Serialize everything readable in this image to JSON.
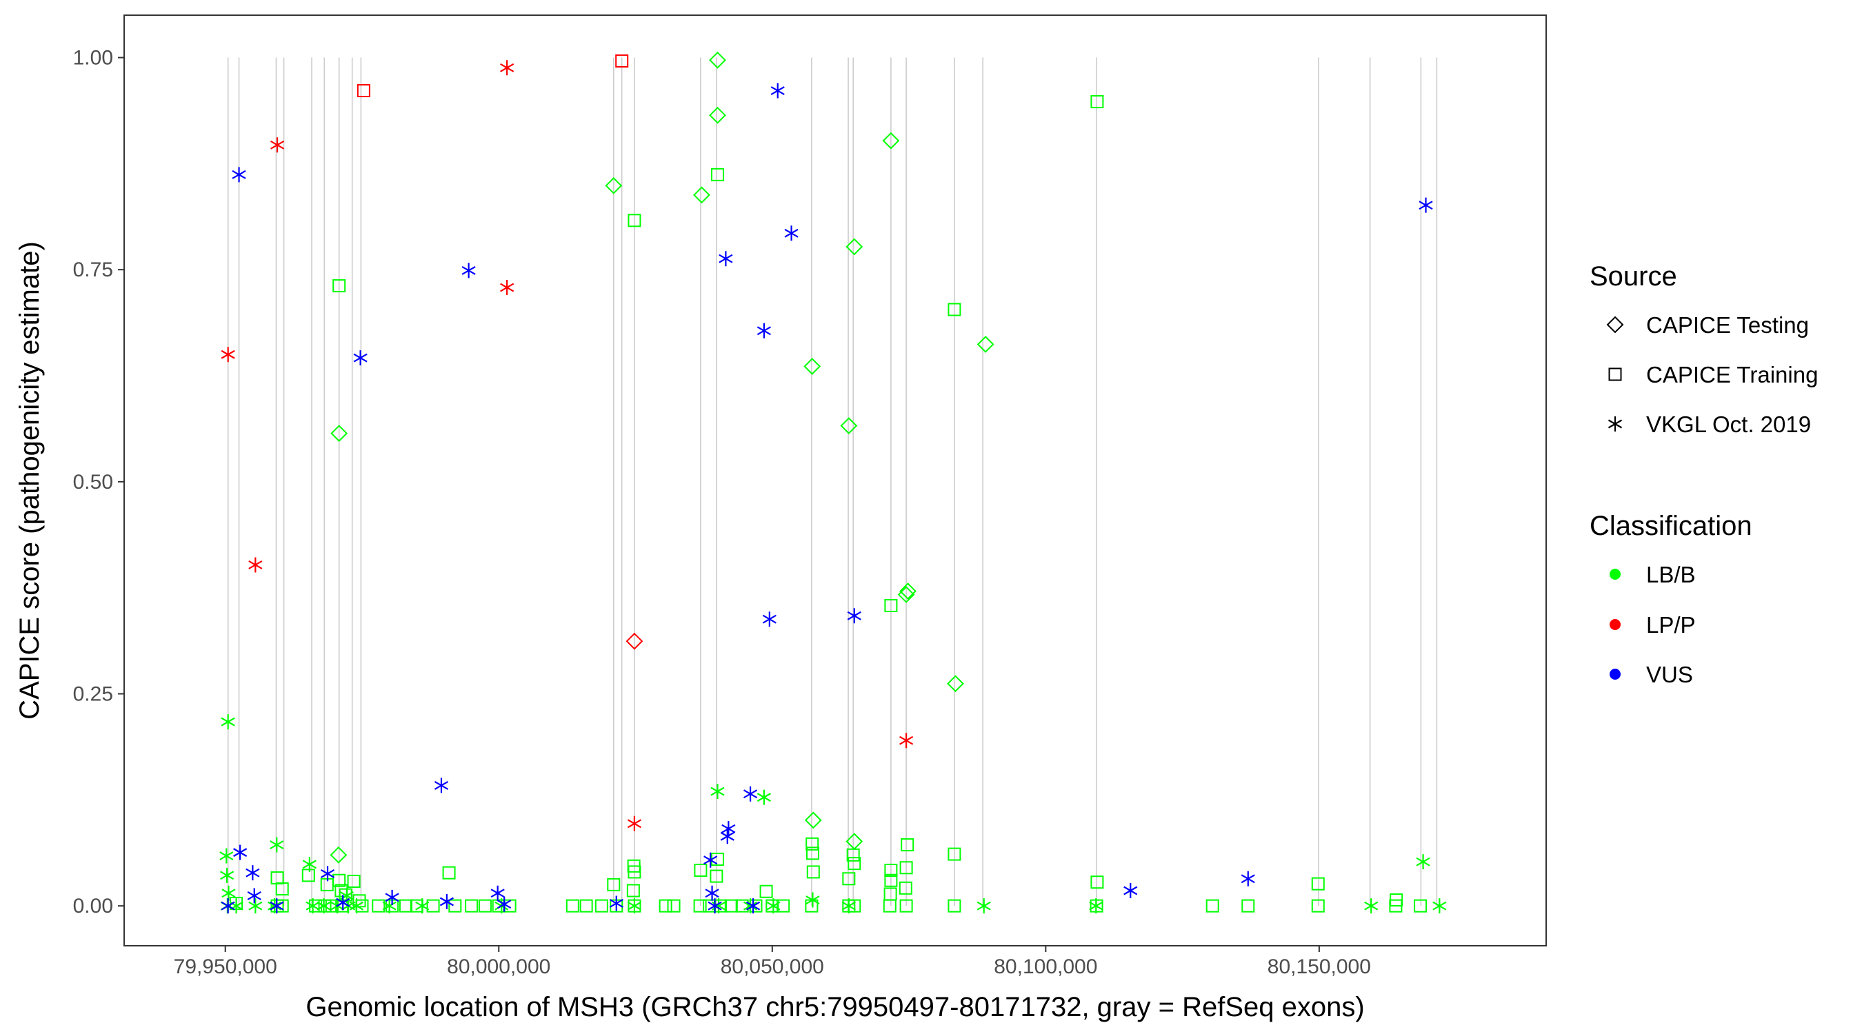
{
  "chart_data": {
    "type": "scatter",
    "xlabel": "Genomic location of MSH3 (GRCh37 chr5:79950497-80171732, gray = RefSeq exons)",
    "ylabel": "CAPICE score (pathogenicity estimate)",
    "xlim": [
      79931500,
      80191500
    ],
    "ylim": [
      -0.047,
      1.05
    ],
    "x_ticks": [
      79950000,
      80000000,
      80050000,
      80100000,
      80150000
    ],
    "x_tick_labels": [
      "79,950,000",
      "80,000,000",
      "80,050,000",
      "80,100,000",
      "80,150,000"
    ],
    "y_ticks": [
      0,
      0.25,
      0.5,
      0.75,
      1.0
    ],
    "y_tick_labels": [
      "0.00",
      "0.25",
      "0.50",
      "0.75",
      "1.00"
    ],
    "grid": false,
    "exon_color": "#cccccc",
    "exon_lines": [
      79950500,
      79952500,
      79959300,
      79960700,
      79965800,
      79968100,
      79970800,
      79973200,
      79974800,
      80021000,
      80022500,
      80024800,
      80036900,
      80039800,
      80057200,
      80063900,
      80064800,
      80071700,
      80074500,
      80083300,
      80088500,
      80109300,
      80149900,
      80159300,
      80168600,
      80171500
    ],
    "legend": {
      "placement": "right",
      "source_title": "Source",
      "source_entries": [
        {
          "label": "CAPICE Testing",
          "shape": "diamond"
        },
        {
          "label": "CAPICE Training",
          "shape": "square"
        },
        {
          "label": "VKGL Oct. 2019",
          "shape": "asterisk"
        }
      ],
      "class_title": "Classification",
      "class_entries": [
        {
          "label": "LB/B",
          "color": "#00ff00"
        },
        {
          "label": "LP/P",
          "color": "#ff0000"
        },
        {
          "label": "VUS",
          "color": "#0000ff"
        }
      ]
    },
    "series": [
      {
        "source": "CAPICE Testing",
        "classification": "LB/B",
        "x": [
          80040000,
          80040000,
          80021000,
          80037100,
          80071700,
          80065000,
          80057300,
          80064000,
          80089000,
          79970800,
          80074800,
          80074500,
          80083500,
          80057500,
          80065000,
          79970700
        ],
        "y": [
          0.997,
          0.932,
          0.849,
          0.838,
          0.902,
          0.777,
          0.636,
          0.566,
          0.662,
          0.557,
          0.371,
          0.367,
          0.262,
          0.101,
          0.076,
          0.06
        ]
      },
      {
        "source": "CAPICE Testing",
        "classification": "LP/P",
        "x": [
          80024800
        ],
        "y": [
          0.312
        ]
      },
      {
        "source": "CAPICE Training",
        "classification": "LB/B",
        "x": [
          80109400,
          80040000,
          80024800,
          79970800,
          80083300,
          80071700,
          80074700,
          80057300,
          80057400,
          80057500,
          80064800,
          80065000,
          80071700,
          80074500,
          80074400,
          80083300,
          80064000,
          80024700,
          80024800,
          80024600,
          80021000,
          80036900,
          80040000,
          80039800,
          80048900,
          79959500,
          79960400,
          79965200,
          79968600,
          79970800,
          79971200,
          79972000,
          79973500,
          79974500,
          79990900,
          80109400,
          80149800,
          80071700,
          80071600,
          80164100,
          79952000,
          79959500,
          79960400,
          79966500,
          79968200,
          79969500,
          79971300,
          79975000,
          79978000,
          79980500,
          79983000,
          79985000,
          79988000,
          79992000,
          79995000,
          79997500,
          80000000,
          80002000,
          80013500,
          80016000,
          80018800,
          80021500,
          80024800,
          80030500,
          80032000,
          80036800,
          80038500,
          80040500,
          80042500,
          80044500,
          80047000,
          80050000,
          80052000,
          80057200,
          80064000,
          80065000,
          80071500,
          80074500,
          80083300,
          80109300,
          80130500,
          80137000,
          80149800,
          80164000,
          80168500
        ],
        "y": [
          0.948,
          0.862,
          0.808,
          0.731,
          0.703,
          0.354,
          0.072,
          0.073,
          0.062,
          0.04,
          0.06,
          0.05,
          0.042,
          0.045,
          0.021,
          0.061,
          0.032,
          0.047,
          0.04,
          0.018,
          0.025,
          0.042,
          0.055,
          0.035,
          0.017,
          0.033,
          0.02,
          0.036,
          0.025,
          0.03,
          0.018,
          0.013,
          0.029,
          0.006,
          0.039,
          0.028,
          0.026,
          0.03,
          0.014,
          0.007,
          0.003,
          0.0,
          0.0,
          0.0,
          0.0,
          0.0,
          0.0,
          0.0,
          0.0,
          0.0,
          0.0,
          0.0,
          0.0,
          0.0,
          0.0,
          0.0,
          0.0,
          0.0,
          0.0,
          0.0,
          0.0,
          0.0,
          0.0,
          0.0,
          0.0,
          0.0,
          0.0,
          0.0,
          0.0,
          0.0,
          0.0,
          0.0,
          0.0,
          0.0,
          0.0,
          0.0,
          0.0,
          0.0,
          0.0,
          0.0,
          0.0,
          0.0,
          0.0,
          0.0,
          0.0
        ]
      },
      {
        "source": "CAPICE Training",
        "classification": "LP/P",
        "x": [
          80022500,
          79975300
        ],
        "y": [
          0.996,
          0.961
        ]
      },
      {
        "source": "VKGL Oct. 2019",
        "classification": "LB/B",
        "x": [
          79950500,
          79950200,
          79950300,
          79950600,
          79959400,
          79965400,
          79972200,
          80040000,
          80048500,
          80057400,
          80169000,
          79950400,
          79952000,
          79955500,
          79959000,
          79966000,
          79968000,
          79970500,
          79972500,
          79974000,
          79980000,
          79986000,
          80000500,
          80024800,
          80040200,
          80046000,
          80050200,
          80064000,
          80088700,
          80109200,
          80159500,
          80172000
        ],
        "y": [
          0.217,
          0.059,
          0.036,
          0.015,
          0.072,
          0.049,
          0.012,
          0.135,
          0.128,
          0.007,
          0.052,
          0.0,
          0.0,
          0.0,
          0.0,
          0.0,
          0.0,
          0.0,
          0.0,
          0.0,
          0.0,
          0.0,
          0.0,
          0.0,
          0.0,
          0.0,
          0.0,
          0.0,
          0.0,
          0.0,
          0.0,
          0.0
        ]
      },
      {
        "source": "VKGL Oct. 2019",
        "classification": "LP/P",
        "x": [
          80001500,
          79959500,
          80001500,
          79950500,
          79955500,
          80074500,
          80024800
        ],
        "y": [
          0.988,
          0.897,
          0.729,
          0.65,
          0.402,
          0.195,
          0.097
        ]
      },
      {
        "source": "VKGL Oct. 2019",
        "classification": "VUS",
        "x": [
          80051000,
          79952500,
          80169500,
          80053500,
          79994500,
          80041500,
          80048500,
          79974700,
          80049500,
          80065000,
          79989500,
          80046000,
          80042000,
          80041800,
          79952700,
          79955000,
          80038700,
          79968700,
          79955300,
          80137000,
          80115500,
          79980500,
          79999800,
          79990500,
          80039000,
          79950500,
          79959400,
          79971500,
          80001000,
          80021500,
          80039500,
          80046500
        ],
        "y": [
          0.961,
          0.862,
          0.826,
          0.793,
          0.749,
          0.763,
          0.678,
          0.646,
          0.338,
          0.342,
          0.142,
          0.132,
          0.091,
          0.082,
          0.063,
          0.039,
          0.054,
          0.038,
          0.012,
          0.032,
          0.018,
          0.01,
          0.015,
          0.005,
          0.015,
          0.0,
          0.0,
          0.004,
          0.002,
          0.003,
          0.0,
          0.0
        ]
      }
    ]
  }
}
